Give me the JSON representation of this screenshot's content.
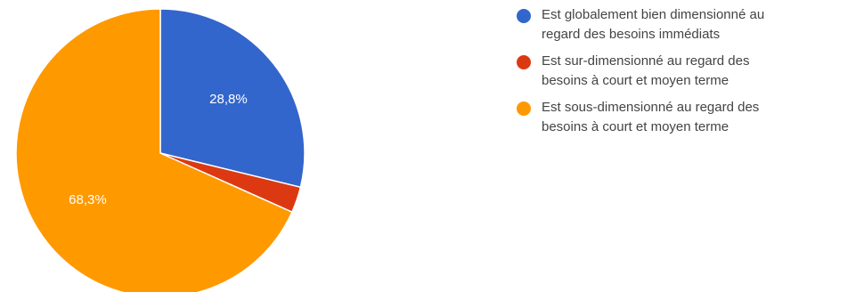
{
  "chart_data": {
    "type": "pie",
    "slices": [
      {
        "label": "Est globalement bien dimensionné au\nregard des besoins immédiats",
        "value": 28.8,
        "display": "28,8%",
        "color": "#3366cc"
      },
      {
        "label": "Est sur-dimensionné au regard des\nbesoins à court et moyen terme",
        "value": 2.9,
        "display": "",
        "color": "#dc3912"
      },
      {
        "label": "Est sous-dimensionné au regard des\nbesoins à court et moyen terme",
        "value": 68.3,
        "display": "68,3%",
        "color": "#ff9900"
      }
    ],
    "legend_position": "right",
    "start_angle_deg": 90,
    "direction": "clockwise"
  }
}
